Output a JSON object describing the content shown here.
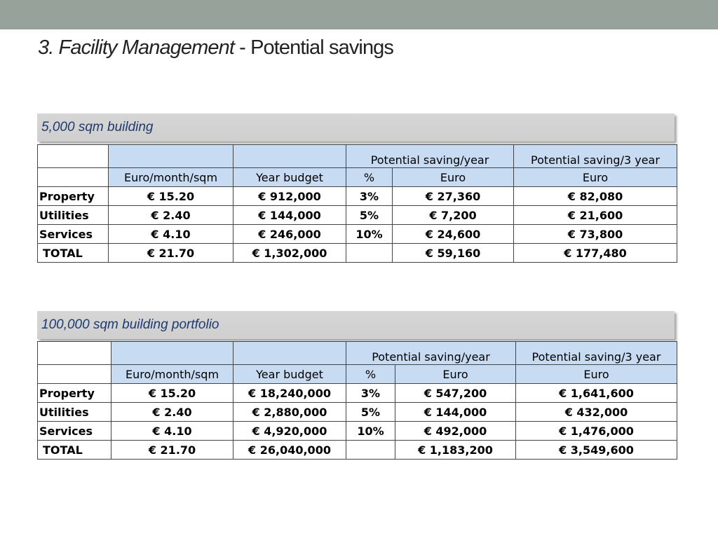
{
  "slide": {
    "title_italic": "3. Facility Management",
    "title_rest": " - Potential savings"
  },
  "colors": {
    "top_bar": "#97a39a",
    "header_bg": "#d3d3d3",
    "header_text": "#1e3a6e",
    "column_header_bg": "#c7dbf2"
  },
  "tables": [
    {
      "caption": "5,000 sqm building",
      "top_headers": [
        "",
        "",
        "",
        "Potential saving/year",
        "Potential saving/3 year"
      ],
      "sub_headers": [
        "",
        "Euro/month/sqm",
        "Year budget",
        "%",
        "Euro",
        "Euro"
      ],
      "rows": [
        [
          "Property",
          "€ 15.20",
          "€ 912,000",
          "3%",
          "€ 27,360",
          "€ 82,080"
        ],
        [
          "Utilities",
          "€ 2.40",
          "€ 144,000",
          "5%",
          "€ 7,200",
          "€ 21,600"
        ],
        [
          "Services",
          "€ 4.10",
          "€ 246,000",
          "10%",
          "€ 24,600",
          "€ 73,800"
        ],
        [
          "TOTAL",
          "€ 21.70",
          "€ 1,302,000",
          "",
          "€ 59,160",
          "€ 177,480"
        ]
      ]
    },
    {
      "caption": "100,000 sqm building portfolio",
      "top_headers": [
        "",
        "",
        "",
        "Potential saving/year",
        "Potential saving/3 year"
      ],
      "sub_headers": [
        "",
        "Euro/month/sqm",
        "Year budget",
        "%",
        "Euro",
        "Euro"
      ],
      "rows": [
        [
          "Property",
          "€ 15.20",
          "€ 18,240,000",
          "3%",
          "€ 547,200",
          "€ 1,641,600"
        ],
        [
          "Utilities",
          "€ 2.40",
          "€ 2,880,000",
          "5%",
          "€ 144,000",
          "€ 432,000"
        ],
        [
          "Services",
          "€ 4.10",
          "€ 4,920,000",
          "10%",
          "€ 492,000",
          "€ 1,476,000"
        ],
        [
          "TOTAL",
          "€ 21.70",
          "€ 26,040,000",
          "",
          "€ 1,183,200",
          "€ 3,549,600"
        ]
      ]
    }
  ]
}
